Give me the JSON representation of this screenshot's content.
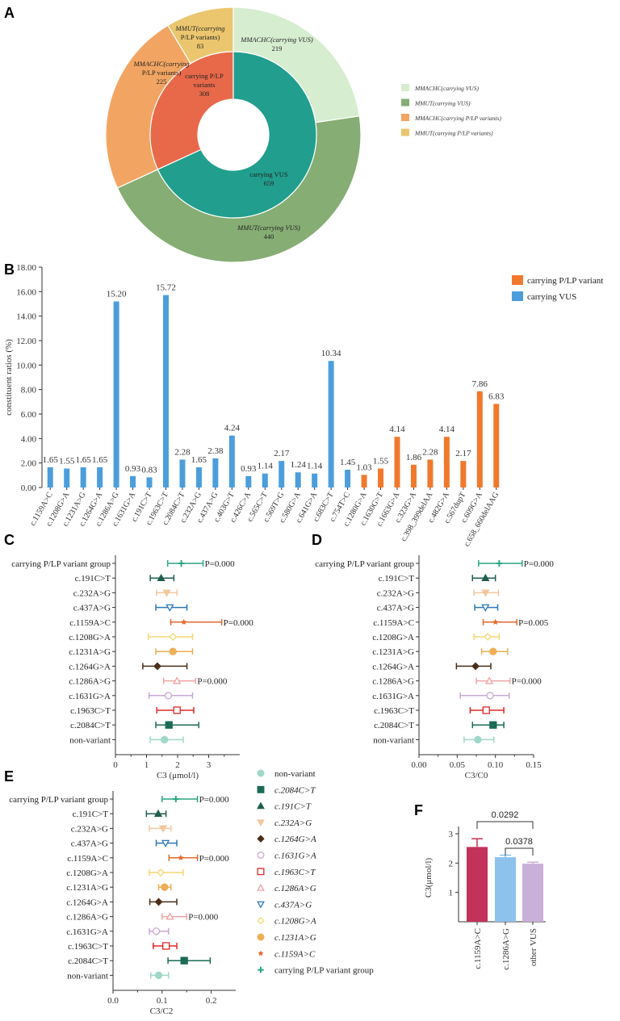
{
  "panels": {
    "a": "A",
    "b": "B",
    "c": "C",
    "d": "D",
    "e": "E",
    "f": "F"
  },
  "chart_data": [
    {
      "panel": "A",
      "type": "pie",
      "inner_ring": [
        {
          "label_lines": [
            "carrying P/LP",
            "variants",
            "308"
          ],
          "value": 308,
          "color": "#E8694A"
        },
        {
          "label_lines": [
            "carrying VUS",
            "659"
          ],
          "value": 659,
          "color": "#219E8E"
        }
      ],
      "outer_ring": [
        {
          "label_lines": [
            "MMACHC(carrying VUS)",
            "219"
          ],
          "value": 219,
          "color": "#D6EDD0"
        },
        {
          "label_lines": [
            "MMUT(carrying VUS)",
            "440"
          ],
          "value": 440,
          "color": "#86AD74"
        },
        {
          "label_lines": [
            "MMACHC(carrying",
            "P/LP variants)",
            "225"
          ],
          "value": 225,
          "color": "#F2A563"
        },
        {
          "label_lines": [
            "MMUT(ccarrying",
            "P/LP variants)",
            "83"
          ],
          "value": 83,
          "color": "#EBC66E"
        }
      ],
      "legend": [
        {
          "label": "MMACHC(carrying VUS)",
          "color": "#D6EDD0"
        },
        {
          "label": "MMUT(carrying VUS)",
          "color": "#86AD74"
        },
        {
          "label": "MMACHC(carrying P/LP variants)",
          "color": "#F2A563"
        },
        {
          "label": "MMUT(carrying P/LP variants)",
          "color": "#EBC66E"
        }
      ]
    },
    {
      "panel": "B",
      "type": "bar",
      "ylabel": "constituent ratios (%)",
      "ylim": [
        0,
        18
      ],
      "yticks": [
        "0.00",
        "2.00",
        "4.00",
        "6.00",
        "8.00",
        "10.00",
        "12.00",
        "14.00",
        "16.00",
        "18.00"
      ],
      "legend": [
        {
          "label": "carrying P/LP variant",
          "color": "#F0792D"
        },
        {
          "label": "carrying VUS",
          "color": "#4B9EDB"
        }
      ],
      "categories": [
        "c.1159A>C",
        "c.1208G>A",
        "c.1231A>G",
        "c.1264G>A",
        "c.1286A>G",
        "c.1631G>A",
        "c.191C>T",
        "c.1963C>T",
        "c.2084C>T",
        "c.232A>G",
        "c.437A>G",
        "c.403G>T",
        "c.426C>A",
        "c.565C>T",
        "c.569T>G",
        "c.580G>A",
        "c.641G>A",
        "c.683C>T",
        "c.754T>C",
        "c.1280G>A",
        "c.1630G>T",
        "c.1663G>A",
        "c.323G>A",
        "c.398_399delAA",
        "c.482G>A",
        "c.567dupT",
        "c.609G>A",
        "c.658_660delAAG"
      ],
      "values": [
        1.65,
        1.55,
        1.65,
        1.65,
        15.2,
        0.93,
        0.83,
        15.72,
        2.28,
        1.65,
        2.38,
        4.24,
        0.93,
        1.14,
        2.17,
        1.24,
        1.14,
        10.34,
        1.45,
        1.03,
        1.55,
        4.14,
        1.86,
        2.28,
        4.14,
        2.17,
        7.86,
        6.83
      ],
      "value_labels": [
        "1.65",
        "1.55",
        "1.65",
        "1.65",
        "15.20",
        "0.93",
        "0.83",
        "15.72",
        "2.28",
        "1.65",
        "2.38",
        "4.24",
        "0.93",
        "1.14",
        "2.17",
        "1.24",
        "1.14",
        "10.34",
        "1.45",
        "1.03",
        "1.55",
        "4.14",
        "1.86",
        "2.28",
        "4.14",
        "2.17",
        "7.86",
        "6.83"
      ],
      "groups": [
        "vus",
        "vus",
        "vus",
        "vus",
        "vus",
        "vus",
        "vus",
        "vus",
        "vus",
        "vus",
        "vus",
        "vus",
        "vus",
        "vus",
        "vus",
        "vus",
        "vus",
        "vus",
        "vus",
        "plp",
        "plp",
        "plp",
        "plp",
        "plp",
        "plp",
        "plp",
        "plp",
        "plp"
      ]
    },
    {
      "panel": "C",
      "type": "scatter",
      "xlabel": "C3 (μmol/l)",
      "xlim": [
        0,
        4
      ],
      "xticks": [
        "0",
        "1",
        "2",
        "3"
      ],
      "tick_values": [
        0,
        1,
        2,
        3
      ],
      "rows": [
        {
          "label": "carrying P/LP variant group",
          "mean": 2.12,
          "lo": 1.68,
          "hi": 2.82,
          "p": "P=0.000"
        },
        {
          "label": "c.191C>T",
          "mean": 1.47,
          "lo": 1.12,
          "hi": 1.88,
          "p": ""
        },
        {
          "label": "c.232A>G",
          "mean": 1.65,
          "lo": 1.32,
          "hi": 1.98,
          "p": ""
        },
        {
          "label": "c.437A>G",
          "mean": 1.75,
          "lo": 1.3,
          "hi": 2.3,
          "p": ""
        },
        {
          "label": "c.1159A>C",
          "mean": 2.2,
          "lo": 1.78,
          "hi": 3.42,
          "p": "P=0.000"
        },
        {
          "label": "c.1208G>A",
          "mean": 1.85,
          "lo": 1.06,
          "hi": 2.48,
          "p": ""
        },
        {
          "label": "c.1231A>G",
          "mean": 1.85,
          "lo": 1.3,
          "hi": 2.48,
          "p": ""
        },
        {
          "label": "c.1264G>A",
          "mean": 1.35,
          "lo": 0.88,
          "hi": 2.3,
          "p": ""
        },
        {
          "label": "c.1286A>G",
          "mean": 1.98,
          "lo": 1.55,
          "hi": 2.58,
          "p": "P=0.000"
        },
        {
          "label": "c.1631G>A",
          "mean": 1.7,
          "lo": 1.08,
          "hi": 2.48,
          "p": ""
        },
        {
          "label": "c.1963C>T",
          "mean": 1.98,
          "lo": 1.33,
          "hi": 2.52,
          "p": ""
        },
        {
          "label": "c.2084C>T",
          "mean": 1.72,
          "lo": 1.3,
          "hi": 2.68,
          "p": ""
        },
        {
          "label": "non-variant",
          "mean": 1.58,
          "lo": 1.12,
          "hi": 2.18,
          "p": ""
        }
      ]
    },
    {
      "panel": "D",
      "type": "scatter",
      "xlabel": "C3/C0",
      "xlim": [
        0,
        0.15
      ],
      "xticks": [
        "0.00",
        "0.05",
        "0.10",
        "0.15"
      ],
      "tick_values": [
        0,
        0.05,
        0.1,
        0.15
      ],
      "rows": [
        {
          "label": "carrying P/LP variant group",
          "mean": 0.105,
          "lo": 0.078,
          "hi": 0.135,
          "p": "P=0.000"
        },
        {
          "label": "c.191C>T",
          "mean": 0.087,
          "lo": 0.07,
          "hi": 0.1,
          "p": ""
        },
        {
          "label": "c.232A>G",
          "mean": 0.087,
          "lo": 0.072,
          "hi": 0.104,
          "p": ""
        },
        {
          "label": "c.437A>G",
          "mean": 0.087,
          "lo": 0.073,
          "hi": 0.103,
          "p": ""
        },
        {
          "label": "c.1159A>C",
          "mean": 0.1,
          "lo": 0.084,
          "hi": 0.128,
          "p": "P=0.005"
        },
        {
          "label": "c.1208G>A",
          "mean": 0.09,
          "lo": 0.072,
          "hi": 0.105,
          "p": ""
        },
        {
          "label": "c.1231A>G",
          "mean": 0.097,
          "lo": 0.082,
          "hi": 0.116,
          "p": ""
        },
        {
          "label": "c.1264G>A",
          "mean": 0.074,
          "lo": 0.049,
          "hi": 0.094,
          "p": ""
        },
        {
          "label": "c.1286A>G",
          "mean": 0.092,
          "lo": 0.075,
          "hi": 0.119,
          "p": "P=0.000"
        },
        {
          "label": "c.1631G>A",
          "mean": 0.093,
          "lo": 0.054,
          "hi": 0.118,
          "p": ""
        },
        {
          "label": "c.1963C>T",
          "mean": 0.088,
          "lo": 0.067,
          "hi": 0.111,
          "p": ""
        },
        {
          "label": "c.2084C>T",
          "mean": 0.097,
          "lo": 0.07,
          "hi": 0.111,
          "p": ""
        },
        {
          "label": "non-variant",
          "mean": 0.077,
          "lo": 0.059,
          "hi": 0.098,
          "p": ""
        }
      ]
    },
    {
      "panel": "E",
      "type": "scatter",
      "xlabel": "C3/C2",
      "xlim": [
        0,
        0.25
      ],
      "xticks": [
        "0.0",
        "0.1",
        "0.2"
      ],
      "tick_values": [
        0,
        0.1,
        0.2
      ],
      "rows": [
        {
          "label": "carrying P/LP variant group",
          "mean": 0.128,
          "lo": 0.1,
          "hi": 0.172,
          "p": "P=0.000"
        },
        {
          "label": "c.191C>T",
          "mean": 0.092,
          "lo": 0.068,
          "hi": 0.108,
          "p": ""
        },
        {
          "label": "c.232A>G",
          "mean": 0.102,
          "lo": 0.074,
          "hi": 0.118,
          "p": ""
        },
        {
          "label": "c.437A>G",
          "mean": 0.107,
          "lo": 0.088,
          "hi": 0.13,
          "p": ""
        },
        {
          "label": "c.1159A>C",
          "mean": 0.138,
          "lo": 0.114,
          "hi": 0.172,
          "p": "P=0.000"
        },
        {
          "label": "c.1208G>A",
          "mean": 0.097,
          "lo": 0.074,
          "hi": 0.143,
          "p": ""
        },
        {
          "label": "c.1231A>G",
          "mean": 0.105,
          "lo": 0.093,
          "hi": 0.118,
          "p": ""
        },
        {
          "label": "c.1264G>A",
          "mean": 0.093,
          "lo": 0.075,
          "hi": 0.13,
          "p": ""
        },
        {
          "label": "c.1286A>G",
          "mean": 0.116,
          "lo": 0.1,
          "hi": 0.15,
          "p": "P=0.000"
        },
        {
          "label": "c.1631G>A",
          "mean": 0.088,
          "lo": 0.074,
          "hi": 0.113,
          "p": ""
        },
        {
          "label": "c.1963C>T",
          "mean": 0.108,
          "lo": 0.082,
          "hi": 0.13,
          "p": ""
        },
        {
          "label": "c.2084C>T",
          "mean": 0.145,
          "lo": 0.112,
          "hi": 0.198,
          "p": ""
        },
        {
          "label": "non-variant",
          "mean": 0.093,
          "lo": 0.077,
          "hi": 0.113,
          "p": ""
        }
      ],
      "legend": [
        {
          "label": "non-variant",
          "italic": false
        },
        {
          "label": "c.2084C>T",
          "italic": true
        },
        {
          "label": "c.191C>T",
          "italic": true
        },
        {
          "label": "c.232A>G",
          "italic": true
        },
        {
          "label": "c.1264G>A",
          "italic": true
        },
        {
          "label": "c.1631G>A",
          "italic": true
        },
        {
          "label": "c.1963C>T",
          "italic": true
        },
        {
          "label": "c.1286A>G",
          "italic": true
        },
        {
          "label": "c.437A>G",
          "italic": true
        },
        {
          "label": "c.1208G>A",
          "italic": true
        },
        {
          "label": "c.1231A>G",
          "italic": true
        },
        {
          "label": "c.1159A>C",
          "italic": true
        },
        {
          "label": "carrying P/LP variant group",
          "italic": false
        }
      ]
    },
    {
      "panel": "F",
      "type": "bar",
      "ylabel": "C3(μmol/l)",
      "ylim": [
        0,
        3
      ],
      "yticks": [
        "1",
        "2",
        "3"
      ],
      "tick_values": [
        1,
        2,
        3
      ],
      "categories": [
        "c.1159A>C",
        "c.1286A>G",
        "other VUS"
      ],
      "values": [
        2.55,
        2.2,
        1.98
      ],
      "errors": [
        0.28,
        0.07,
        0.05
      ],
      "colors": [
        "#C2325A",
        "#8CC2EC",
        "#C9B0D9"
      ],
      "comparisons": [
        {
          "label": "0.0292",
          "from": 0,
          "to": 2
        },
        {
          "label": "0.0378",
          "from": 1,
          "to": 2
        }
      ]
    }
  ],
  "styles": {
    "row_colors": [
      "#2BA784",
      "#1F5E4E",
      "#F2C89E",
      "#2F78B9",
      "#E06A2E",
      "#F5D76E",
      "#EDAE55",
      "#4A2E18",
      "#F1A3A3",
      "#C8A8D6",
      "#E02828",
      "#1B6B56",
      "#9FD8C8"
    ],
    "row_markers": [
      "plus",
      "triangle",
      "tri-down",
      "tri-down-open",
      "star",
      "diamond-open",
      "circle",
      "diamond",
      "triangle-open",
      "circle-open",
      "square-open",
      "square",
      "circle"
    ],
    "legend_colors": [
      "#9FD8C8",
      "#1B6B56",
      "#1F5E4E",
      "#F2C89E",
      "#4A2E18",
      "#C8A8D6",
      "#E02828",
      "#F1A3A3",
      "#2F78B9",
      "#F5D76E",
      "#EDAE55",
      "#E06A2E",
      "#2BA784"
    ],
    "legend_markers": [
      "circle",
      "square",
      "triangle",
      "tri-down",
      "diamond",
      "circle-open",
      "square-open",
      "triangle-open",
      "tri-down-open",
      "diamond-open",
      "circle",
      "star",
      "plus"
    ]
  }
}
